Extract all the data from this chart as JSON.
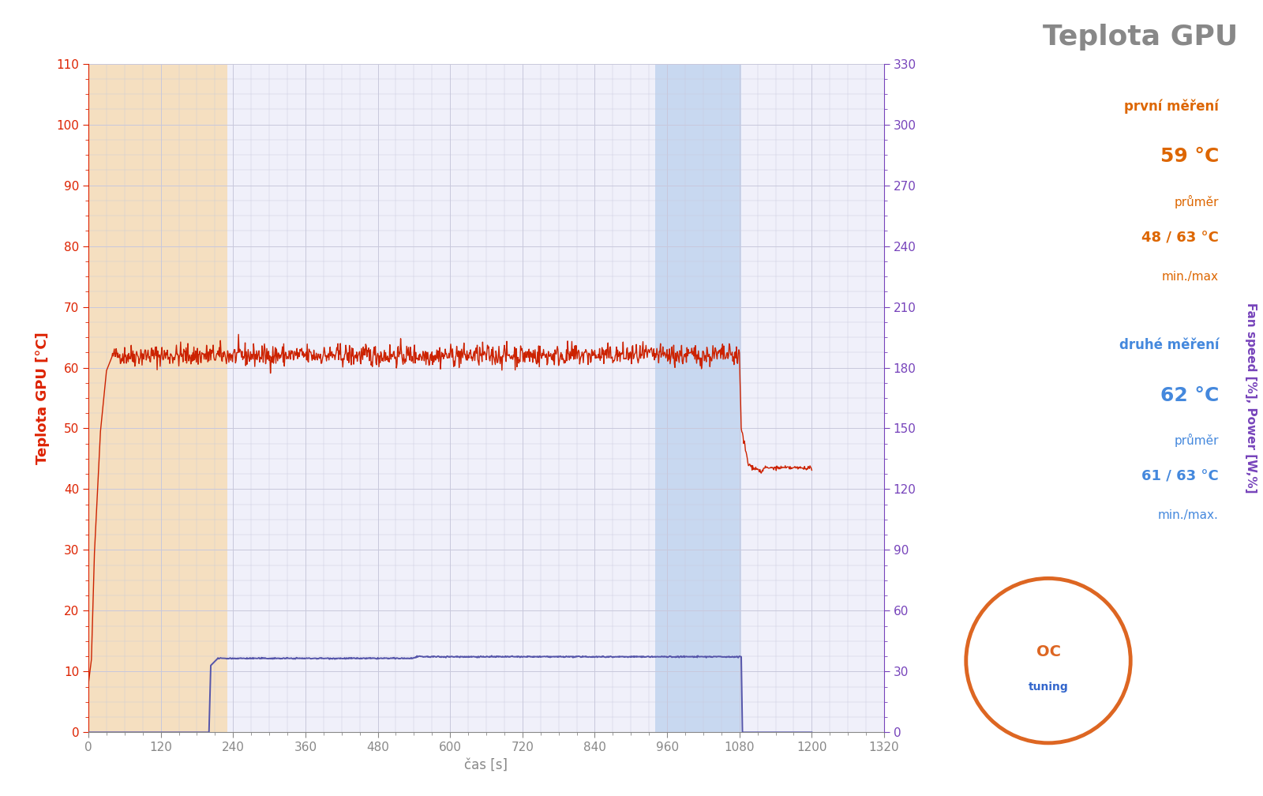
{
  "title": "Teplota GPU",
  "title_color": "#888888",
  "title_fontsize": 26,
  "ylabel_left": "Teplota GPU [°C]",
  "ylabel_left_color": "#dd2200",
  "ylabel_right_fan": "Fan speed [%],",
  "ylabel_right_power": " Power [W,%]",
  "ylabel_right_color_fan": "#7744bb",
  "ylabel_right_color_power": "#228822",
  "xlabel": "čas [s]",
  "xlabel_color": "#888888",
  "xlim": [
    0,
    1320
  ],
  "ylim_left": [
    0,
    110
  ],
  "ylim_right": [
    0,
    330
  ],
  "xticks": [
    0,
    120,
    240,
    360,
    480,
    600,
    720,
    840,
    960,
    1080,
    1200,
    1320
  ],
  "yticks_left": [
    0,
    10,
    20,
    30,
    40,
    50,
    60,
    70,
    80,
    90,
    100,
    110
  ],
  "yticks_right": [
    0,
    30,
    60,
    90,
    120,
    150,
    180,
    210,
    240,
    270,
    300,
    330
  ],
  "bg_color": "#f0f0fa",
  "grid_color": "#c8c8dc",
  "orange_region": [
    0,
    230
  ],
  "blue_region": [
    940,
    1083
  ],
  "orange_bg": "#f5dfc0",
  "blue_bg": "#c8d8f0",
  "line1_color": "#cc2200",
  "line2_color": "#5555aa",
  "annotation1_label": "první měření",
  "annotation1_avg_label": "59 °C",
  "annotation1_avg_sub": "průměr",
  "annotation1_minmax_label": "48 / 63 °C",
  "annotation1_minmax_sub": "min./max",
  "annotation1_color": "#dd6600",
  "annotation2_label": "druhé měření",
  "annotation2_avg_label": "62 °C",
  "annotation2_avg_sub": "průměr",
  "annotation2_minmax_label": "61 / 63 °C",
  "annotation2_minmax_sub": "min./max.",
  "annotation2_color": "#4488dd",
  "logo_color_orange": "#dd6622",
  "logo_color_blue": "#3366cc"
}
